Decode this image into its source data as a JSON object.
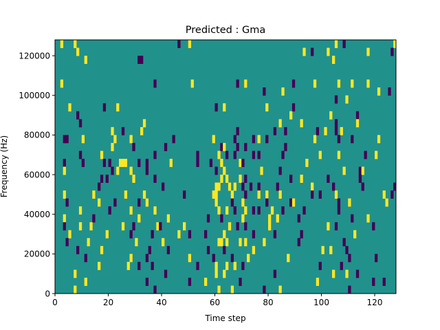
{
  "chart_data": {
    "type": "heatmap",
    "title": "Predicted : Gma",
    "xlabel": "Time step",
    "ylabel": "Frequency (Hz)",
    "xlim": [
      0,
      128
    ],
    "ylim": [
      0,
      128000
    ],
    "x_ticks": [
      0,
      20,
      40,
      60,
      80,
      100,
      120
    ],
    "y_ticks": [
      0,
      20000,
      40000,
      60000,
      80000,
      100000,
      120000
    ],
    "y_tick_labels": [
      "0",
      "20000",
      "40000",
      "60000",
      "80000",
      "100000",
      "120000"
    ],
    "colormap": "viridis",
    "value_levels": {
      "low": 0,
      "mid": 0.5,
      "high": 1
    },
    "colors": {
      "low": "#440154",
      "mid": "#21918c",
      "high": "#fde725"
    },
    "n_time_steps": 128,
    "n_freq_bins": 32,
    "freq_bin_width_hz": 4000,
    "background_value": 0.5,
    "cells": [
      [
        2,
        31,
        1
      ],
      [
        7,
        31,
        1
      ],
      [
        46,
        31,
        0
      ],
      [
        50,
        31,
        1
      ],
      [
        105,
        31,
        1
      ],
      [
        108,
        31,
        0
      ],
      [
        127,
        31,
        1
      ],
      [
        8,
        30,
        1
      ],
      [
        93,
        30,
        1
      ],
      [
        96,
        30,
        0
      ],
      [
        102,
        30,
        1
      ],
      [
        117,
        30,
        1
      ],
      [
        126,
        30,
        0
      ],
      [
        11,
        29,
        1
      ],
      [
        31,
        29,
        0
      ],
      [
        32,
        29,
        0
      ],
      [
        104,
        29,
        1
      ],
      [
        2,
        26,
        1
      ],
      [
        37,
        26,
        0
      ],
      [
        51,
        26,
        1
      ],
      [
        68,
        26,
        0
      ],
      [
        71,
        26,
        1
      ],
      [
        89,
        26,
        0
      ],
      [
        97,
        26,
        1
      ],
      [
        106,
        26,
        1
      ],
      [
        111,
        26,
        1
      ],
      [
        117,
        26,
        1
      ],
      [
        78,
        25,
        0
      ],
      [
        85,
        25,
        1
      ],
      [
        121,
        25,
        1
      ],
      [
        125,
        25,
        0
      ],
      [
        105,
        24,
        0
      ],
      [
        109,
        24,
        1
      ],
      [
        5,
        23,
        1
      ],
      [
        18,
        23,
        0
      ],
      [
        23,
        23,
        1
      ],
      [
        60,
        23,
        0
      ],
      [
        63,
        23,
        1
      ],
      [
        79,
        23,
        1
      ],
      [
        89,
        23,
        0
      ],
      [
        8,
        22,
        0
      ],
      [
        88,
        22,
        1
      ],
      [
        103,
        22,
        1
      ],
      [
        113,
        22,
        0
      ],
      [
        9,
        21,
        0
      ],
      [
        33,
        21,
        1
      ],
      [
        84,
        21,
        1
      ],
      [
        92,
        21,
        1
      ],
      [
        105,
        21,
        0
      ],
      [
        113,
        21,
        1
      ],
      [
        21,
        20,
        1
      ],
      [
        25,
        20,
        0
      ],
      [
        32,
        20,
        1
      ],
      [
        68,
        20,
        0
      ],
      [
        82,
        20,
        0
      ],
      [
        86,
        20,
        0
      ],
      [
        98,
        20,
        0
      ],
      [
        101,
        20,
        1
      ],
      [
        105,
        20,
        0
      ],
      [
        107,
        20,
        1
      ],
      [
        3,
        19,
        0
      ],
      [
        4,
        19,
        0
      ],
      [
        10,
        19,
        1
      ],
      [
        22,
        19,
        1
      ],
      [
        28,
        19,
        1
      ],
      [
        44,
        19,
        0
      ],
      [
        59,
        19,
        1
      ],
      [
        67,
        19,
        0
      ],
      [
        74,
        19,
        0
      ],
      [
        76,
        19,
        1
      ],
      [
        79,
        19,
        0
      ],
      [
        97,
        19,
        1
      ],
      [
        106,
        19,
        0
      ],
      [
        111,
        19,
        0
      ],
      [
        121,
        19,
        1
      ],
      [
        21,
        18,
        1
      ],
      [
        29,
        18,
        0
      ],
      [
        41,
        18,
        0
      ],
      [
        62,
        18,
        0
      ],
      [
        63,
        18,
        1
      ],
      [
        68,
        18,
        0
      ],
      [
        71,
        18,
        0
      ],
      [
        86,
        18,
        0
      ],
      [
        9,
        17,
        0
      ],
      [
        17,
        17,
        1
      ],
      [
        37,
        17,
        0
      ],
      [
        53,
        17,
        0
      ],
      [
        61,
        17,
        1
      ],
      [
        64,
        17,
        0
      ],
      [
        67,
        17,
        0
      ],
      [
        74,
        17,
        0
      ],
      [
        76,
        17,
        0
      ],
      [
        85,
        17,
        0
      ],
      [
        99,
        17,
        1
      ],
      [
        106,
        17,
        1
      ],
      [
        116,
        17,
        0
      ],
      [
        120,
        17,
        1
      ],
      [
        3,
        16,
        0
      ],
      [
        10,
        16,
        0
      ],
      [
        18,
        16,
        0
      ],
      [
        20,
        16,
        0
      ],
      [
        24,
        16,
        1
      ],
      [
        25,
        16,
        1
      ],
      [
        26,
        16,
        1
      ],
      [
        31,
        16,
        0
      ],
      [
        34,
        16,
        0
      ],
      [
        43,
        16,
        1
      ],
      [
        53,
        16,
        0
      ],
      [
        58,
        16,
        0
      ],
      [
        62,
        16,
        1
      ],
      [
        69,
        16,
        1
      ],
      [
        70,
        16,
        0
      ],
      [
        94,
        16,
        1
      ],
      [
        3,
        15,
        1
      ],
      [
        21,
        15,
        0
      ],
      [
        23,
        15,
        1
      ],
      [
        28,
        15,
        1
      ],
      [
        34,
        15,
        0
      ],
      [
        60,
        15,
        0
      ],
      [
        63,
        15,
        1
      ],
      [
        77,
        15,
        1
      ],
      [
        84,
        15,
        0
      ],
      [
        108,
        15,
        1
      ],
      [
        114,
        15,
        0
      ],
      [
        115,
        15,
        1
      ],
      [
        17,
        14,
        0
      ],
      [
        19,
        14,
        0
      ],
      [
        29,
        14,
        1
      ],
      [
        37,
        14,
        0
      ],
      [
        62,
        14,
        1
      ],
      [
        64,
        14,
        1
      ],
      [
        69,
        14,
        1
      ],
      [
        71,
        14,
        0
      ],
      [
        88,
        14,
        0
      ],
      [
        92,
        14,
        1
      ],
      [
        102,
        14,
        0
      ],
      [
        114,
        14,
        0
      ],
      [
        16,
        13,
        0
      ],
      [
        40,
        13,
        0
      ],
      [
        60,
        13,
        1
      ],
      [
        61,
        13,
        1
      ],
      [
        65,
        13,
        1
      ],
      [
        67,
        13,
        1
      ],
      [
        70,
        13,
        0
      ],
      [
        73,
        13,
        0
      ],
      [
        76,
        13,
        0
      ],
      [
        83,
        13,
        0
      ],
      [
        96,
        13,
        1
      ],
      [
        104,
        13,
        0
      ],
      [
        115,
        13,
        0
      ],
      [
        127,
        13,
        0
      ],
      [
        3,
        12,
        1
      ],
      [
        14,
        12,
        1
      ],
      [
        26,
        12,
        1
      ],
      [
        33,
        12,
        1
      ],
      [
        48,
        12,
        0
      ],
      [
        59,
        12,
        1
      ],
      [
        60,
        12,
        1
      ],
      [
        66,
        12,
        1
      ],
      [
        71,
        12,
        0
      ],
      [
        76,
        12,
        1
      ],
      [
        79,
        12,
        1
      ],
      [
        84,
        12,
        1
      ],
      [
        96,
        12,
        0
      ],
      [
        99,
        12,
        0
      ],
      [
        105,
        12,
        1
      ],
      [
        123,
        12,
        1
      ],
      [
        126,
        12,
        0
      ],
      [
        4,
        11,
        0
      ],
      [
        16,
        11,
        1
      ],
      [
        22,
        11,
        0
      ],
      [
        31,
        11,
        0
      ],
      [
        34,
        11,
        1
      ],
      [
        60,
        11,
        1
      ],
      [
        66,
        11,
        0
      ],
      [
        70,
        11,
        1
      ],
      [
        79,
        11,
        0
      ],
      [
        88,
        11,
        0
      ],
      [
        89,
        11,
        1
      ],
      [
        106,
        11,
        0
      ],
      [
        110,
        11,
        1
      ],
      [
        124,
        11,
        1
      ],
      [
        9,
        10,
        1
      ],
      [
        20,
        10,
        0
      ],
      [
        28,
        10,
        1
      ],
      [
        37,
        10,
        1
      ],
      [
        61,
        10,
        1
      ],
      [
        64,
        10,
        1
      ],
      [
        67,
        10,
        0
      ],
      [
        71,
        10,
        1
      ],
      [
        74,
        10,
        0
      ],
      [
        76,
        10,
        0
      ],
      [
        81,
        10,
        1
      ],
      [
        85,
        10,
        0
      ],
      [
        93,
        10,
        0
      ],
      [
        106,
        10,
        0
      ],
      [
        3,
        9,
        1
      ],
      [
        14,
        9,
        0
      ],
      [
        31,
        9,
        1
      ],
      [
        42,
        9,
        1
      ],
      [
        57,
        9,
        0
      ],
      [
        62,
        9,
        0
      ],
      [
        70,
        9,
        1
      ],
      [
        80,
        9,
        1
      ],
      [
        83,
        9,
        1
      ],
      [
        91,
        9,
        0
      ],
      [
        111,
        9,
        0
      ],
      [
        117,
        9,
        1
      ],
      [
        3,
        8,
        0
      ],
      [
        9,
        8,
        1
      ],
      [
        13,
        8,
        1
      ],
      [
        25,
        8,
        1
      ],
      [
        29,
        8,
        0
      ],
      [
        38,
        8,
        1
      ],
      [
        39,
        8,
        0
      ],
      [
        48,
        8,
        1
      ],
      [
        65,
        8,
        1
      ],
      [
        68,
        8,
        0
      ],
      [
        71,
        8,
        0
      ],
      [
        80,
        8,
        1
      ],
      [
        102,
        8,
        1
      ],
      [
        105,
        8,
        0
      ],
      [
        119,
        8,
        0
      ],
      [
        5,
        7,
        1
      ],
      [
        19,
        7,
        1
      ],
      [
        28,
        7,
        0
      ],
      [
        36,
        7,
        0
      ],
      [
        46,
        7,
        1
      ],
      [
        50,
        7,
        0
      ],
      [
        56,
        7,
        0
      ],
      [
        63,
        7,
        1
      ],
      [
        74,
        7,
        0
      ],
      [
        82,
        7,
        0
      ],
      [
        92,
        7,
        0
      ],
      [
        112,
        7,
        1
      ],
      [
        4,
        6,
        0
      ],
      [
        12,
        6,
        1
      ],
      [
        30,
        6,
        1
      ],
      [
        40,
        6,
        1
      ],
      [
        61,
        6,
        1
      ],
      [
        62,
        6,
        1
      ],
      [
        64,
        6,
        1
      ],
      [
        69,
        6,
        1
      ],
      [
        71,
        6,
        1
      ],
      [
        78,
        6,
        1
      ],
      [
        91,
        6,
        0
      ],
      [
        108,
        6,
        0
      ],
      [
        8,
        5,
        0
      ],
      [
        17,
        5,
        1
      ],
      [
        35,
        5,
        0
      ],
      [
        42,
        5,
        0
      ],
      [
        57,
        5,
        0
      ],
      [
        63,
        5,
        0
      ],
      [
        74,
        5,
        1
      ],
      [
        100,
        5,
        1
      ],
      [
        103,
        5,
        1
      ],
      [
        109,
        5,
        0
      ],
      [
        11,
        4,
        0
      ],
      [
        28,
        4,
        1
      ],
      [
        34,
        4,
        0
      ],
      [
        50,
        4,
        1
      ],
      [
        59,
        4,
        0
      ],
      [
        66,
        4,
        0
      ],
      [
        72,
        4,
        1
      ],
      [
        87,
        4,
        1
      ],
      [
        110,
        4,
        0
      ],
      [
        120,
        4,
        0
      ],
      [
        16,
        3,
        1
      ],
      [
        27,
        3,
        1
      ],
      [
        31,
        3,
        0
      ],
      [
        36,
        3,
        0
      ],
      [
        53,
        3,
        0
      ],
      [
        60,
        3,
        1
      ],
      [
        64,
        3,
        1
      ],
      [
        67,
        3,
        1
      ],
      [
        70,
        3,
        0
      ],
      [
        99,
        3,
        0
      ],
      [
        107,
        3,
        0
      ],
      [
        7,
        2,
        1
      ],
      [
        41,
        2,
        0
      ],
      [
        60,
        2,
        1
      ],
      [
        63,
        2,
        1
      ],
      [
        82,
        2,
        0
      ],
      [
        104,
        2,
        1
      ],
      [
        109,
        2,
        1
      ],
      [
        113,
        2,
        0
      ],
      [
        11,
        1,
        1
      ],
      [
        34,
        1,
        0
      ],
      [
        50,
        1,
        0
      ],
      [
        56,
        1,
        1
      ],
      [
        69,
        1,
        0
      ],
      [
        98,
        1,
        1
      ],
      [
        119,
        1,
        0
      ],
      [
        123,
        1,
        0
      ],
      [
        7,
        0,
        1
      ],
      [
        37,
        0,
        0
      ],
      [
        61,
        0,
        1
      ],
      [
        66,
        0,
        1
      ],
      [
        78,
        0,
        0
      ],
      [
        84,
        0,
        1
      ],
      [
        110,
        0,
        0
      ]
    ]
  }
}
